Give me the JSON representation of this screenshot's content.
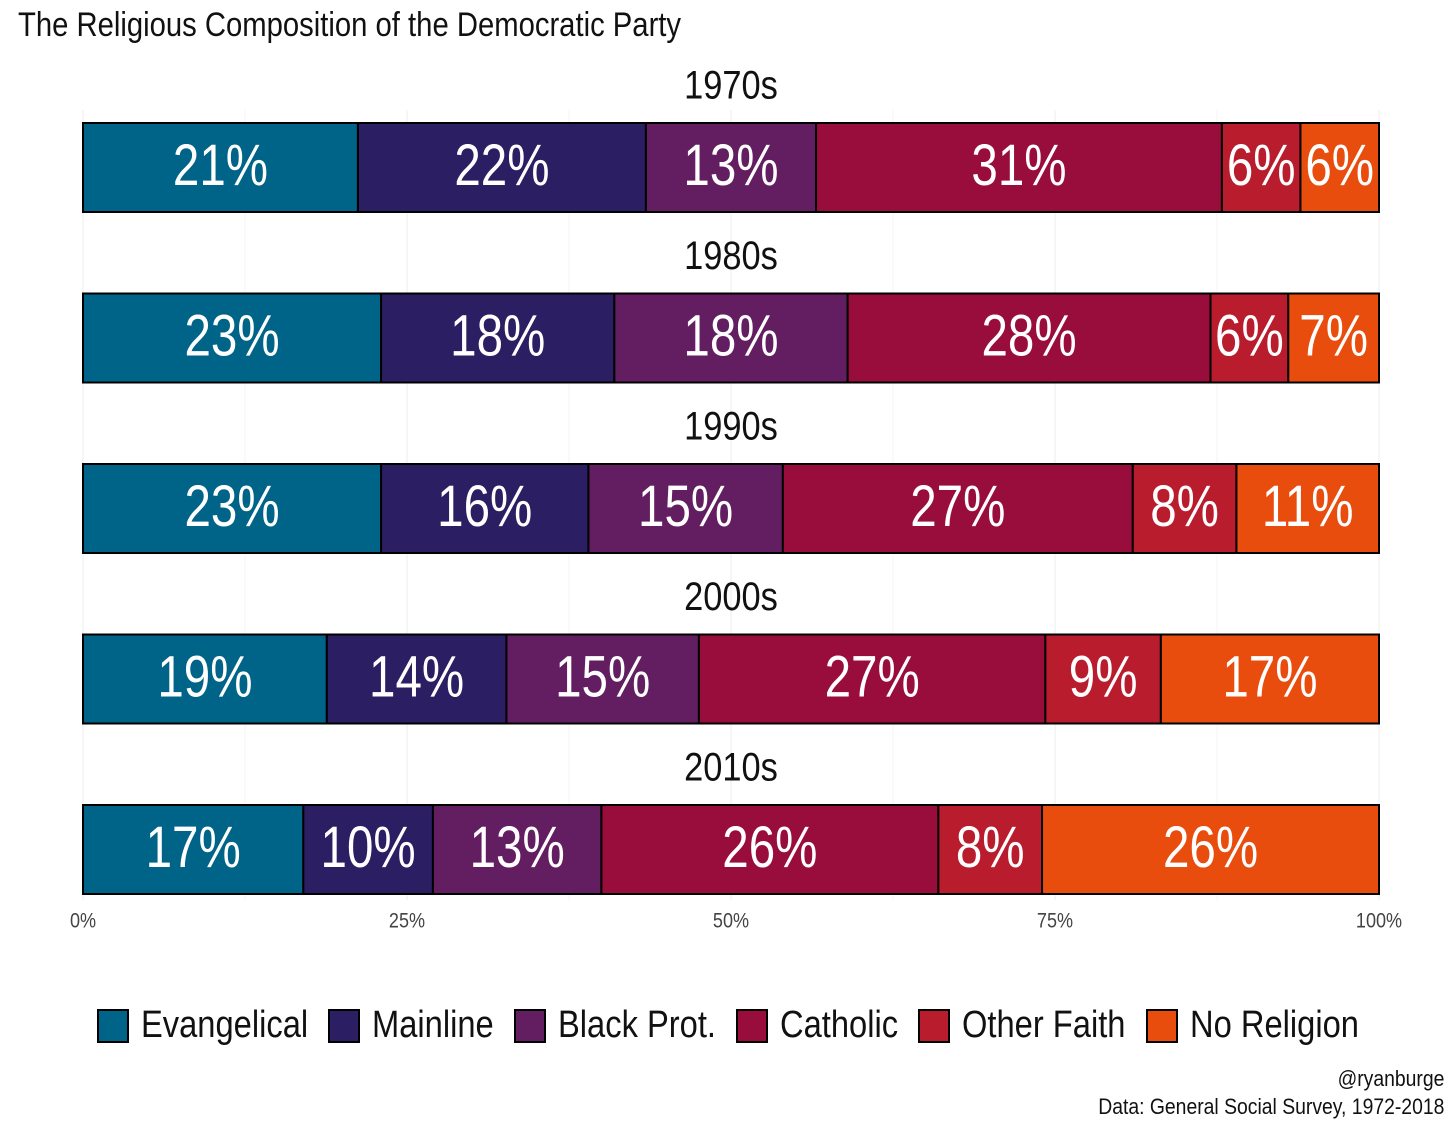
{
  "title": "The Religious Composition of the Democratic Party",
  "chart_data": {
    "type": "bar",
    "orientation": "horizontal-stacked",
    "title": "The Religious Composition of the Democratic Party",
    "categories": [
      "1970s",
      "1980s",
      "1990s",
      "2000s",
      "2010s"
    ],
    "series": [
      {
        "name": "Evangelical",
        "color": "#006388",
        "values": [
          21,
          23,
          23,
          19,
          17
        ],
        "labels": [
          "21%",
          "23%",
          "23%",
          "19%",
          "17%"
        ]
      },
      {
        "name": "Mainline",
        "color": "#2B1E62",
        "values": [
          22,
          18,
          16,
          14,
          10
        ],
        "labels": [
          "22%",
          "18%",
          "16%",
          "14%",
          "10%"
        ]
      },
      {
        "name": "Black Prot.",
        "color": "#631E62",
        "values": [
          13,
          18,
          15,
          15,
          13
        ],
        "labels": [
          "13%",
          "18%",
          "15%",
          "15%",
          "13%"
        ]
      },
      {
        "name": "Catholic",
        "color": "#990D3C",
        "values": [
          31,
          28,
          27,
          27,
          26
        ],
        "labels": [
          "31%",
          "28%",
          "27%",
          "27%",
          "26%"
        ]
      },
      {
        "name": "Other Faith",
        "color": "#B91C2C",
        "values": [
          6,
          6,
          8,
          9,
          8
        ],
        "labels": [
          "6%",
          "6%",
          "8%",
          "9%",
          "8%"
        ]
      },
      {
        "name": "No Religion",
        "color": "#E84D0E",
        "values": [
          6,
          7,
          11,
          17,
          26
        ],
        "labels": [
          "6%",
          "7%",
          "11%",
          "17%",
          "26%"
        ]
      }
    ],
    "x_ticks": [
      "0%",
      "25%",
      "50%",
      "75%",
      "100%"
    ],
    "xlim": [
      0,
      100
    ],
    "grid": true,
    "legend_position": "bottom"
  },
  "caption": {
    "handle": "@ryanburge",
    "source": "Data: General Social Survey, 1972-2018"
  }
}
